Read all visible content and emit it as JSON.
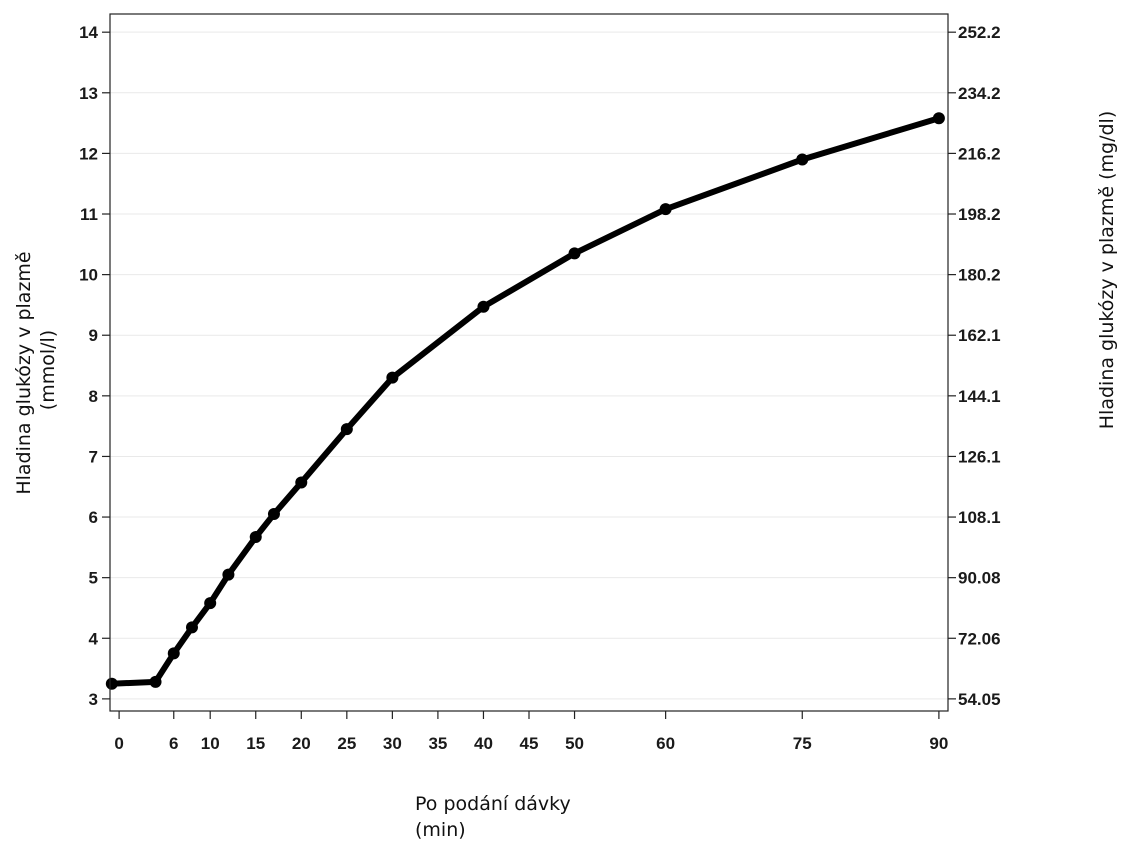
{
  "chart_data": {
    "type": "line",
    "title": "",
    "xlabel": [
      "Po podání dávky",
      "(min)"
    ],
    "ylabel": [
      "Hladina glukózy v plazmě",
      "(mmol/l)"
    ],
    "ylabel_right": "Hladina glukózy v plazmě (mg/dl)",
    "xlim": [
      -1,
      91
    ],
    "ylim": [
      2.8,
      14.3
    ],
    "x_ticks": [
      0,
      6,
      10,
      15,
      20,
      25,
      30,
      35,
      40,
      45,
      50,
      60,
      75,
      90
    ],
    "x_tick_labels": [
      "0",
      "6",
      "10",
      "15",
      "20",
      "25",
      "30",
      "35",
      "40",
      "45",
      "50",
      "60",
      "75",
      "90"
    ],
    "y_ticks": [
      3,
      4,
      5,
      6,
      7,
      8,
      9,
      10,
      11,
      12,
      13,
      14
    ],
    "y_tick_labels": [
      "3",
      "4",
      "5",
      "6",
      "7",
      "8",
      "9",
      "10",
      "11",
      "12",
      "13",
      "14"
    ],
    "y_right_ticks": [
      3,
      4,
      5,
      6,
      7,
      8,
      9,
      10,
      11,
      12,
      13,
      14
    ],
    "y_right_tick_labels": [
      "54.05",
      "72.06",
      "90.08",
      "108.1",
      "126.1",
      "144.1",
      "162.1",
      "180.2",
      "198.2",
      "216.2",
      "234.2",
      "252.2"
    ],
    "grid": true,
    "line_color": "#000000",
    "series": [
      {
        "x": [
          -0.8,
          4,
          6,
          8,
          10,
          12,
          15,
          17,
          20,
          25,
          30,
          40,
          50,
          60,
          75,
          90
        ],
        "values": [
          3.25,
          3.28,
          3.75,
          4.18,
          4.58,
          5.05,
          5.67,
          6.05,
          6.57,
          7.45,
          8.3,
          9.47,
          10.35,
          11.08,
          11.9,
          12.58
        ]
      }
    ]
  }
}
